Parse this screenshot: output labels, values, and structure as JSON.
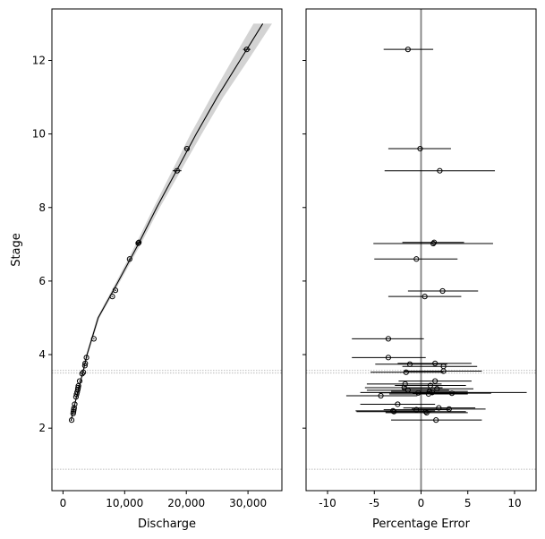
{
  "chart_data": [
    {
      "type": "scatter",
      "xlabel": "Discharge",
      "ylabel": "Stage",
      "xlim": [
        -1800,
        35500
      ],
      "ylim": [
        0.3,
        13.4
      ],
      "xticks": [
        0,
        10000,
        20000,
        30000
      ],
      "xtick_labels": [
        "0",
        "10,000",
        "20,000",
        "30,000"
      ],
      "yticks": [
        2,
        4,
        6,
        8,
        10,
        12
      ],
      "ytick_labels": [
        "2",
        "4",
        "6",
        "8",
        "10",
        "12"
      ],
      "grid": false,
      "ref_lines": [
        3.5,
        3.57,
        0.88
      ],
      "rating_curve": {
        "stages": [
          2.2,
          2.5,
          3.0,
          3.5,
          4.0,
          5.0,
          6.0,
          7.0,
          8.0,
          9.0,
          10.0,
          11.0,
          12.0,
          13.0
        ],
        "discharge": [
          1300,
          1700,
          2400,
          3200,
          3900,
          5700,
          9000,
          12200,
          15200,
          18400,
          21600,
          25000,
          28700,
          32400
        ],
        "band_lower": [
          1250,
          1650,
          2300,
          3100,
          3750,
          5500,
          8700,
          11800,
          14700,
          17700,
          20700,
          24000,
          27400,
          30900
        ],
        "band_upper": [
          1350,
          1750,
          2500,
          3300,
          4050,
          5900,
          9300,
          12600,
          15700,
          19100,
          22500,
          26000,
          30000,
          33900
        ]
      },
      "points": [
        {
          "q": 29800,
          "stage": 12.3,
          "err": 600
        },
        {
          "q": 20100,
          "stage": 9.6,
          "err": 400
        },
        {
          "q": 18500,
          "stage": 9.0,
          "err": 700
        },
        {
          "q": 12300,
          "stage": 7.05,
          "err": 400
        },
        {
          "q": 12200,
          "stage": 7.03,
          "err": 300
        },
        {
          "q": 10800,
          "stage": 6.6,
          "err": 150
        },
        {
          "q": 8500,
          "stage": 5.75,
          "err": 150
        },
        {
          "q": 8000,
          "stage": 5.58,
          "err": 120
        },
        {
          "q": 5000,
          "stage": 4.43,
          "err": 100
        },
        {
          "q": 3800,
          "stage": 3.92,
          "err": 100
        },
        {
          "q": 3600,
          "stage": 3.76,
          "err": 90
        },
        {
          "q": 3550,
          "stage": 3.7,
          "err": 90
        },
        {
          "q": 3300,
          "stage": 3.52,
          "err": 90
        },
        {
          "q": 3100,
          "stage": 3.48,
          "err": 80
        },
        {
          "q": 2700,
          "stage": 3.28,
          "err": 80
        },
        {
          "q": 2500,
          "stage": 3.15,
          "err": 80
        },
        {
          "q": 2450,
          "stage": 3.1,
          "err": 80
        },
        {
          "q": 2400,
          "stage": 3.05,
          "err": 80
        },
        {
          "q": 2300,
          "stage": 2.98,
          "err": 80
        },
        {
          "q": 2200,
          "stage": 2.92,
          "err": 70
        },
        {
          "q": 2100,
          "stage": 2.85,
          "err": 70
        },
        {
          "q": 1900,
          "stage": 2.65,
          "err": 70
        },
        {
          "q": 1800,
          "stage": 2.55,
          "err": 60
        },
        {
          "q": 1750,
          "stage": 2.5,
          "err": 60
        },
        {
          "q": 1700,
          "stage": 2.45,
          "err": 60
        },
        {
          "q": 1650,
          "stage": 2.4,
          "err": 60
        },
        {
          "q": 1400,
          "stage": 2.22,
          "err": 60
        }
      ]
    },
    {
      "type": "scatter",
      "xlabel": "Percentage Error",
      "ylabel": "",
      "xlim": [
        -12.3,
        12.3
      ],
      "ylim": [
        0.3,
        13.4
      ],
      "xticks": [
        -10,
        -5,
        0,
        5,
        10
      ],
      "xtick_labels": [
        "-10",
        "-5",
        "0",
        "5",
        "10"
      ],
      "yticks": [
        2,
        4,
        6,
        8,
        10,
        12
      ],
      "grid": false,
      "zero_line": 0,
      "ref_lines": [
        3.5,
        3.57,
        0.88
      ],
      "points": [
        {
          "pe": -1.4,
          "stage": 12.3,
          "lo": -4.0,
          "hi": 1.3
        },
        {
          "pe": -0.1,
          "stage": 9.6,
          "lo": -3.5,
          "hi": 3.2
        },
        {
          "pe": 2.0,
          "stage": 9.0,
          "lo": -3.9,
          "hi": 7.9
        },
        {
          "pe": 1.4,
          "stage": 7.05,
          "lo": -2.0,
          "hi": 4.6
        },
        {
          "pe": 1.3,
          "stage": 7.02,
          "lo": -5.1,
          "hi": 7.7
        },
        {
          "pe": -0.5,
          "stage": 6.6,
          "lo": -5.0,
          "hi": 3.9
        },
        {
          "pe": 2.3,
          "stage": 5.73,
          "lo": -1.4,
          "hi": 6.1
        },
        {
          "pe": 0.4,
          "stage": 5.58,
          "lo": -3.5,
          "hi": 4.3
        },
        {
          "pe": -3.5,
          "stage": 4.43,
          "lo": -7.4,
          "hi": 0.3
        },
        {
          "pe": -3.5,
          "stage": 3.92,
          "lo": -7.4,
          "hi": 0.5
        },
        {
          "pe": 1.5,
          "stage": 3.76,
          "lo": -2.5,
          "hi": 5.4
        },
        {
          "pe": -1.2,
          "stage": 3.74,
          "lo": -4.9,
          "hi": 2.8
        },
        {
          "pe": 2.4,
          "stage": 3.68,
          "lo": -2.0,
          "hi": 6.0
        },
        {
          "pe": -1.6,
          "stage": 3.52,
          "lo": -5.4,
          "hi": 2.4
        },
        {
          "pe": 2.4,
          "stage": 3.55,
          "lo": -1.8,
          "hi": 6.5
        },
        {
          "pe": 1.5,
          "stage": 3.28,
          "lo": -2.4,
          "hi": 5.4
        },
        {
          "pe": -1.7,
          "stage": 3.2,
          "lo": -5.8,
          "hi": 2.2
        },
        {
          "pe": 1.0,
          "stage": 3.16,
          "lo": -2.8,
          "hi": 4.8
        },
        {
          "pe": -1.8,
          "stage": 3.1,
          "lo": -6.0,
          "hi": 2.3
        },
        {
          "pe": 1.7,
          "stage": 3.07,
          "lo": -2.0,
          "hi": 5.6
        },
        {
          "pe": -1.4,
          "stage": 3.03,
          "lo": -5.8,
          "hi": 3.0
        },
        {
          "pe": 0.9,
          "stage": 3.0,
          "lo": -3.2,
          "hi": 5.0
        },
        {
          "pe": 1.2,
          "stage": 2.97,
          "lo": -6.5,
          "hi": 11.3
        },
        {
          "pe": -0.3,
          "stage": 2.96,
          "lo": -4.5,
          "hi": 3.9
        },
        {
          "pe": 3.3,
          "stage": 2.95,
          "lo": -0.9,
          "hi": 7.5
        },
        {
          "pe": 0.8,
          "stage": 2.93,
          "lo": -3.4,
          "hi": 5.0
        },
        {
          "pe": -4.3,
          "stage": 2.88,
          "lo": -8.0,
          "hi": -0.4
        },
        {
          "pe": -2.5,
          "stage": 2.65,
          "lo": -6.5,
          "hi": 1.5
        },
        {
          "pe": 1.9,
          "stage": 2.55,
          "lo": -1.9,
          "hi": 5.8
        },
        {
          "pe": 3.0,
          "stage": 2.52,
          "lo": -1.0,
          "hi": 6.9
        },
        {
          "pe": -0.5,
          "stage": 2.5,
          "lo": -4.0,
          "hi": 3.1
        },
        {
          "pe": 0.5,
          "stage": 2.45,
          "lo": -3.8,
          "hi": 4.8
        },
        {
          "pe": -2.9,
          "stage": 2.45,
          "lo": -6.9,
          "hi": 1.1
        },
        {
          "pe": -3.0,
          "stage": 2.47,
          "lo": -7.0,
          "hi": 1.5
        },
        {
          "pe": 0.6,
          "stage": 2.42,
          "lo": -3.8,
          "hi": 5.0
        },
        {
          "pe": 1.6,
          "stage": 2.22,
          "lo": -3.2,
          "hi": 6.5
        }
      ]
    }
  ]
}
